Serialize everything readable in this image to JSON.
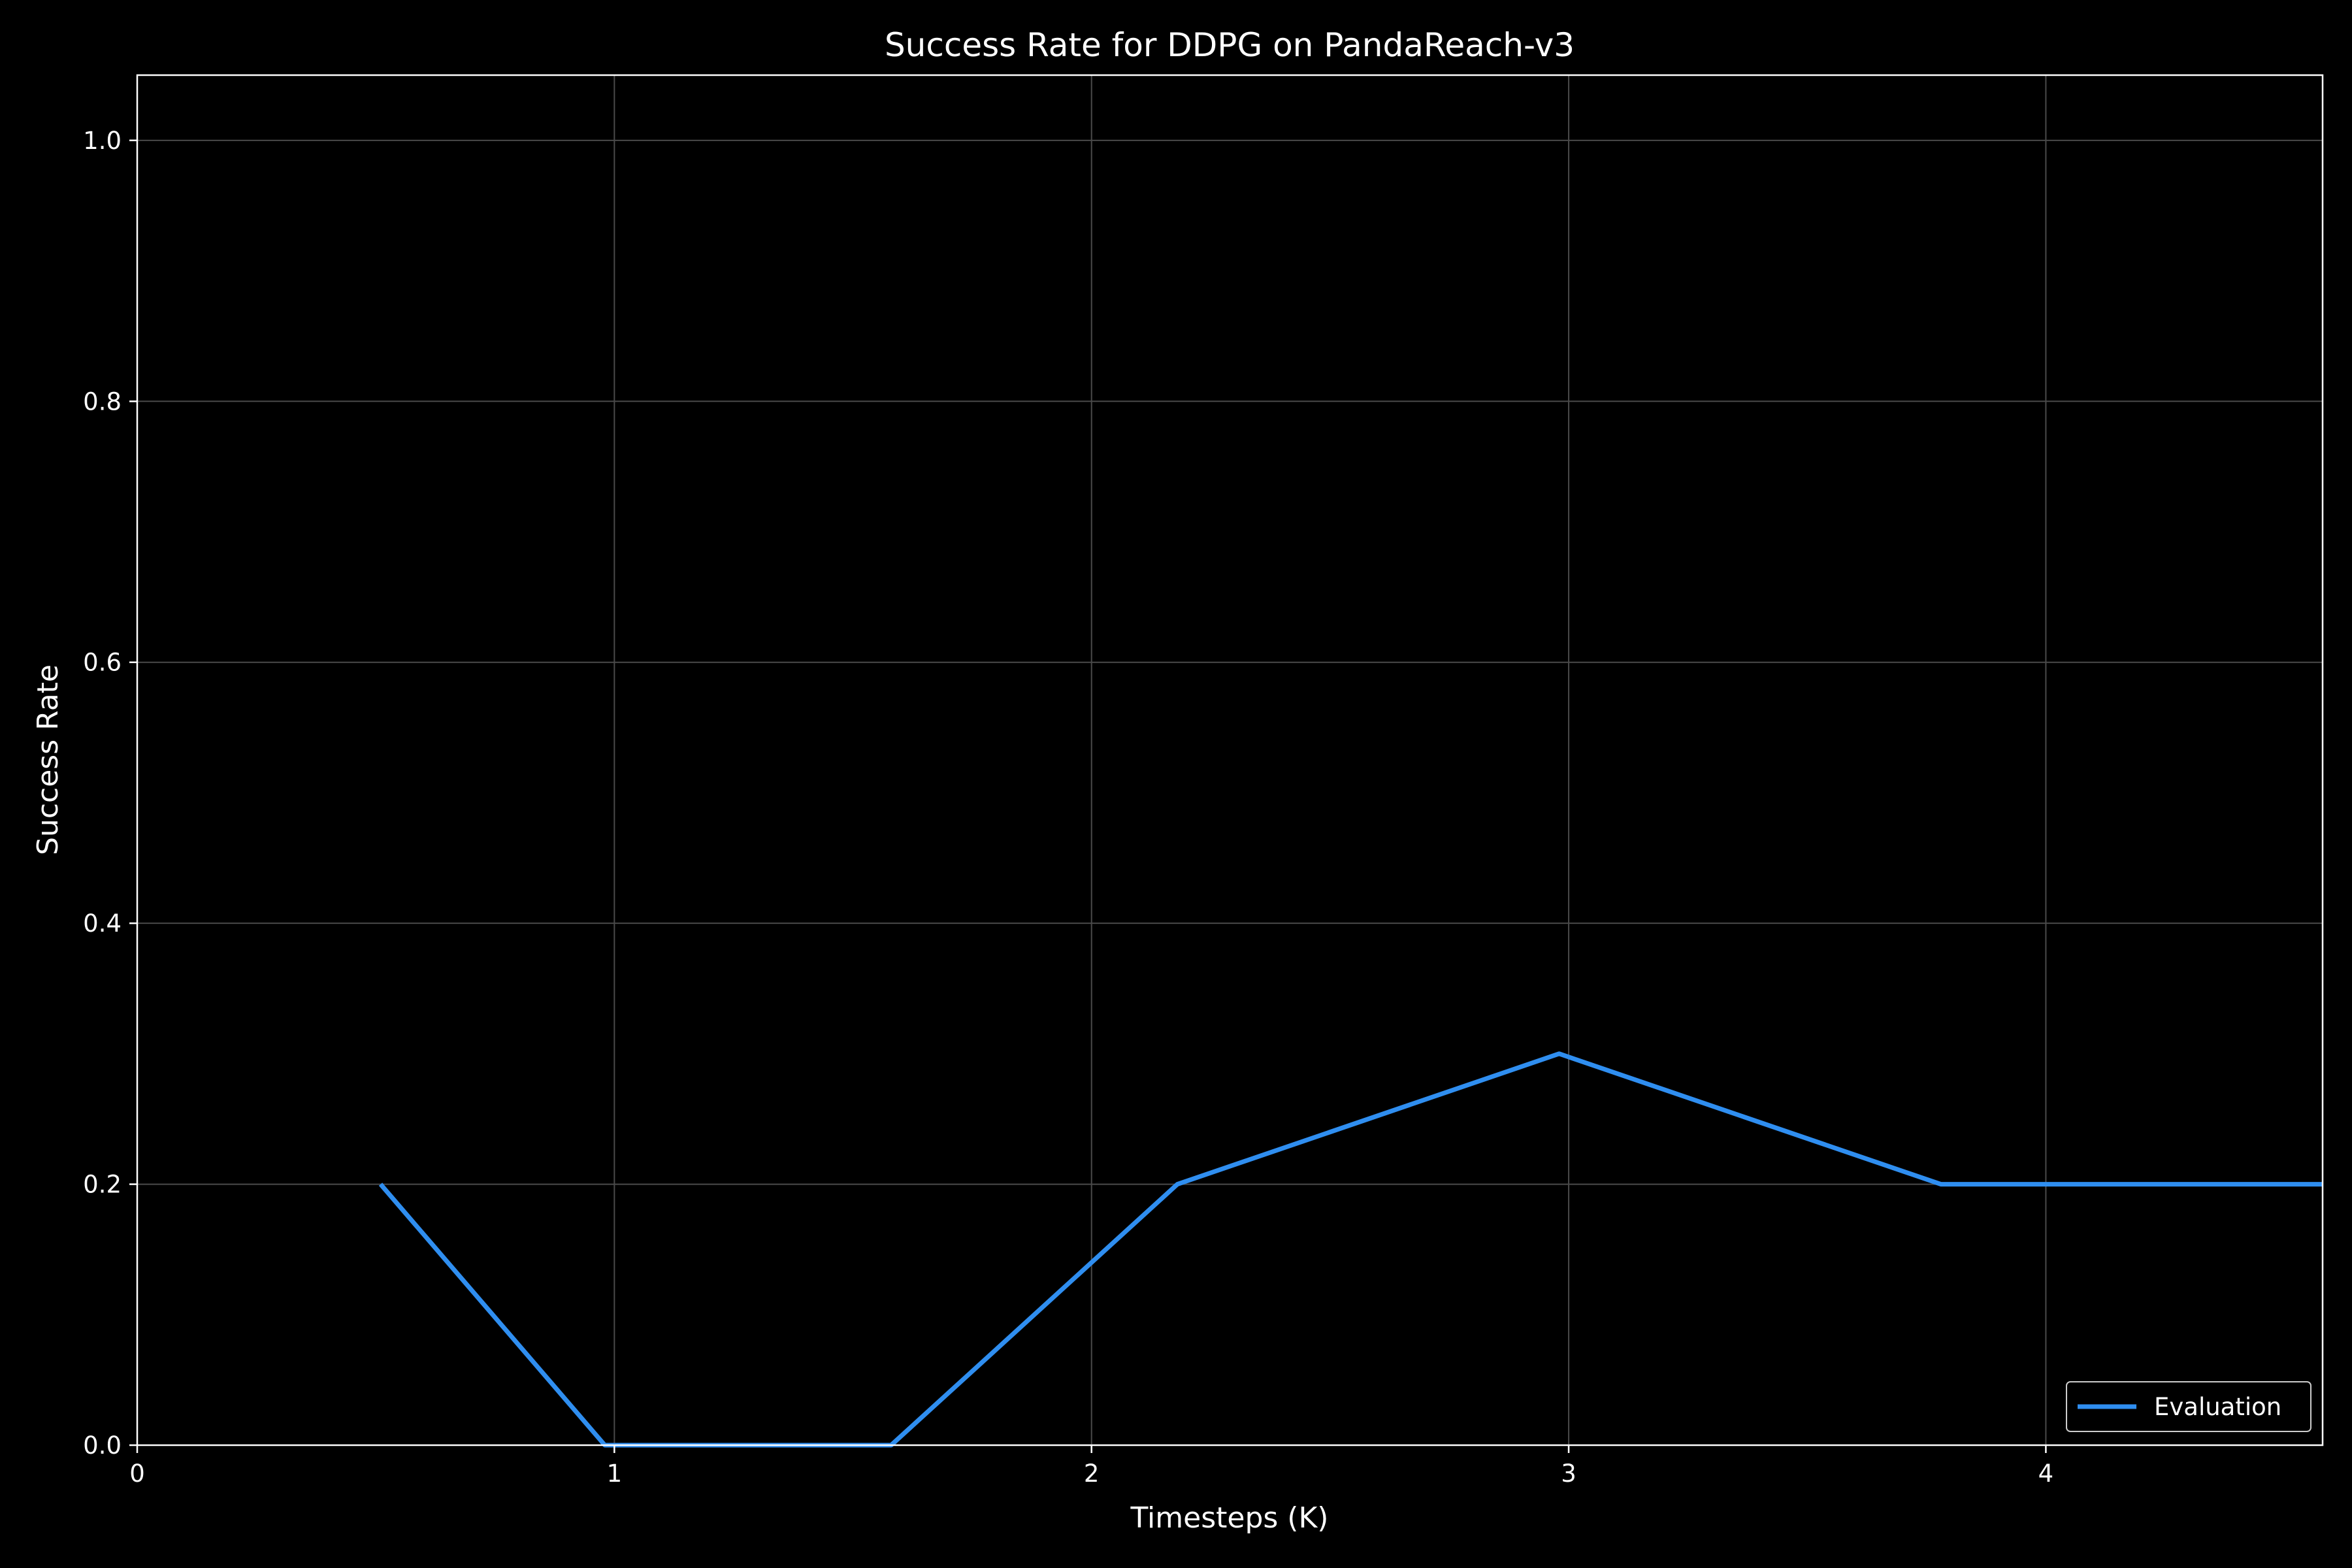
{
  "chart_data": {
    "type": "line",
    "title": "Success Rate for DDPG on PandaReach-v3",
    "xlabel": "Timesteps (K)",
    "ylabel": "Success Rate",
    "xlim": [
      0,
      4.58
    ],
    "ylim": [
      0,
      1.05
    ],
    "xticks": [
      0,
      1,
      2,
      3,
      4
    ],
    "xtick_labels": [
      "0",
      "1",
      "2",
      "3",
      "4"
    ],
    "yticks": [
      0.0,
      0.2,
      0.4,
      0.6,
      0.8,
      1.0
    ],
    "ytick_labels": [
      "0.0",
      "0.2",
      "0.4",
      "0.6",
      "0.8",
      "1.0"
    ],
    "grid": true,
    "legend_position": "lower-right",
    "series": [
      {
        "name": "Evaluation",
        "color": "#2f8ef0",
        "x": [
          0.51,
          0.98,
          1.58,
          2.18,
          2.98,
          3.78,
          4.58
        ],
        "y": [
          0.2,
          0.0,
          0.0,
          0.2,
          0.3,
          0.2,
          0.2
        ]
      }
    ]
  },
  "colors": {
    "background": "#000000",
    "foreground": "#ffffff",
    "grid": "#4a4a4a"
  }
}
